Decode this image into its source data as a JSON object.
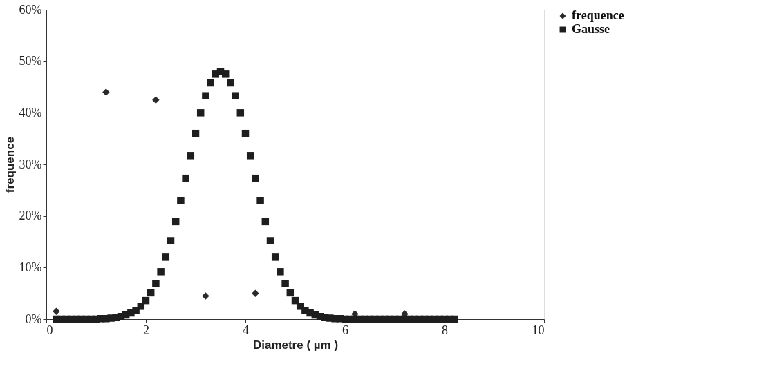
{
  "chart_data": {
    "type": "scatter",
    "xlabel": "Diametre ( µm )",
    "ylabel": "frequence",
    "xlim": [
      0,
      10
    ],
    "xticks": [
      0,
      2,
      4,
      6,
      8,
      10
    ],
    "ylim": [
      0,
      60
    ],
    "yticks": [
      {
        "value": 0,
        "label": "0%"
      },
      {
        "value": 10,
        "label": "10%"
      },
      {
        "value": 20,
        "label": "20%"
      },
      {
        "value": 30,
        "label": "30%"
      },
      {
        "value": 40,
        "label": "40%"
      },
      {
        "value": 50,
        "label": "50%"
      },
      {
        "value": 60,
        "label": "60%"
      }
    ],
    "grid": false,
    "legend": "top right",
    "series": [
      {
        "name": "frequence",
        "color": "#2a2a2a",
        "marker": "diamond",
        "x": [
          0.2,
          1.2,
          2.2,
          3.2,
          4.2,
          6.2,
          7.2
        ],
        "values": [
          1.5,
          44,
          42.5,
          4.5,
          5,
          1,
          1
        ]
      },
      {
        "name": "Gausse",
        "color": "#1e1e1e",
        "marker": "square",
        "x": [
          0.2,
          0.3,
          0.4,
          0.5,
          0.6,
          0.7,
          0.8,
          0.9,
          1.0,
          1.1,
          1.2,
          1.3,
          1.4,
          1.5,
          1.6,
          1.7,
          1.8,
          1.9,
          2.0,
          2.1,
          2.2,
          2.3,
          2.4,
          2.5,
          2.6,
          2.7,
          2.8,
          2.9,
          3.0,
          3.1,
          3.2,
          3.3,
          3.4,
          3.5,
          3.6,
          3.7,
          3.8,
          3.9,
          4.0,
          4.1,
          4.2,
          4.3,
          4.4,
          4.5,
          4.6,
          4.7,
          4.8,
          4.9,
          5.0,
          5.1,
          5.2,
          5.3,
          5.4,
          5.5,
          5.6,
          5.7,
          5.8,
          5.9,
          6.0,
          6.1,
          6.2,
          6.3,
          6.4,
          6.5,
          6.6,
          6.7,
          6.8,
          6.9,
          7.0,
          7.1,
          7.2,
          7.3,
          7.4,
          7.5,
          7.6,
          7.7,
          7.8,
          7.9,
          8.0,
          8.1,
          8.2
        ],
        "values": [
          0,
          0,
          0,
          0,
          0,
          0,
          0,
          0,
          0,
          0.1,
          0.1,
          0.2,
          0.3,
          0.5,
          0.8,
          1.2,
          1.7,
          2.5,
          3.6,
          5.1,
          6.9,
          9.2,
          12.0,
          15.2,
          18.9,
          23.0,
          27.3,
          31.7,
          36.0,
          40.0,
          43.3,
          45.8,
          47.5,
          48,
          47.5,
          45.8,
          43.3,
          40.0,
          36.0,
          31.7,
          27.3,
          23.0,
          18.9,
          15.2,
          12.0,
          9.2,
          6.9,
          5.1,
          3.6,
          2.5,
          1.7,
          1.2,
          0.8,
          0.5,
          0.3,
          0.2,
          0.1,
          0.1,
          0,
          0,
          0,
          0,
          0,
          0,
          0,
          0,
          0,
          0,
          0,
          0,
          0,
          0,
          0,
          0,
          0,
          0,
          0,
          0,
          0,
          0,
          0
        ]
      }
    ]
  }
}
